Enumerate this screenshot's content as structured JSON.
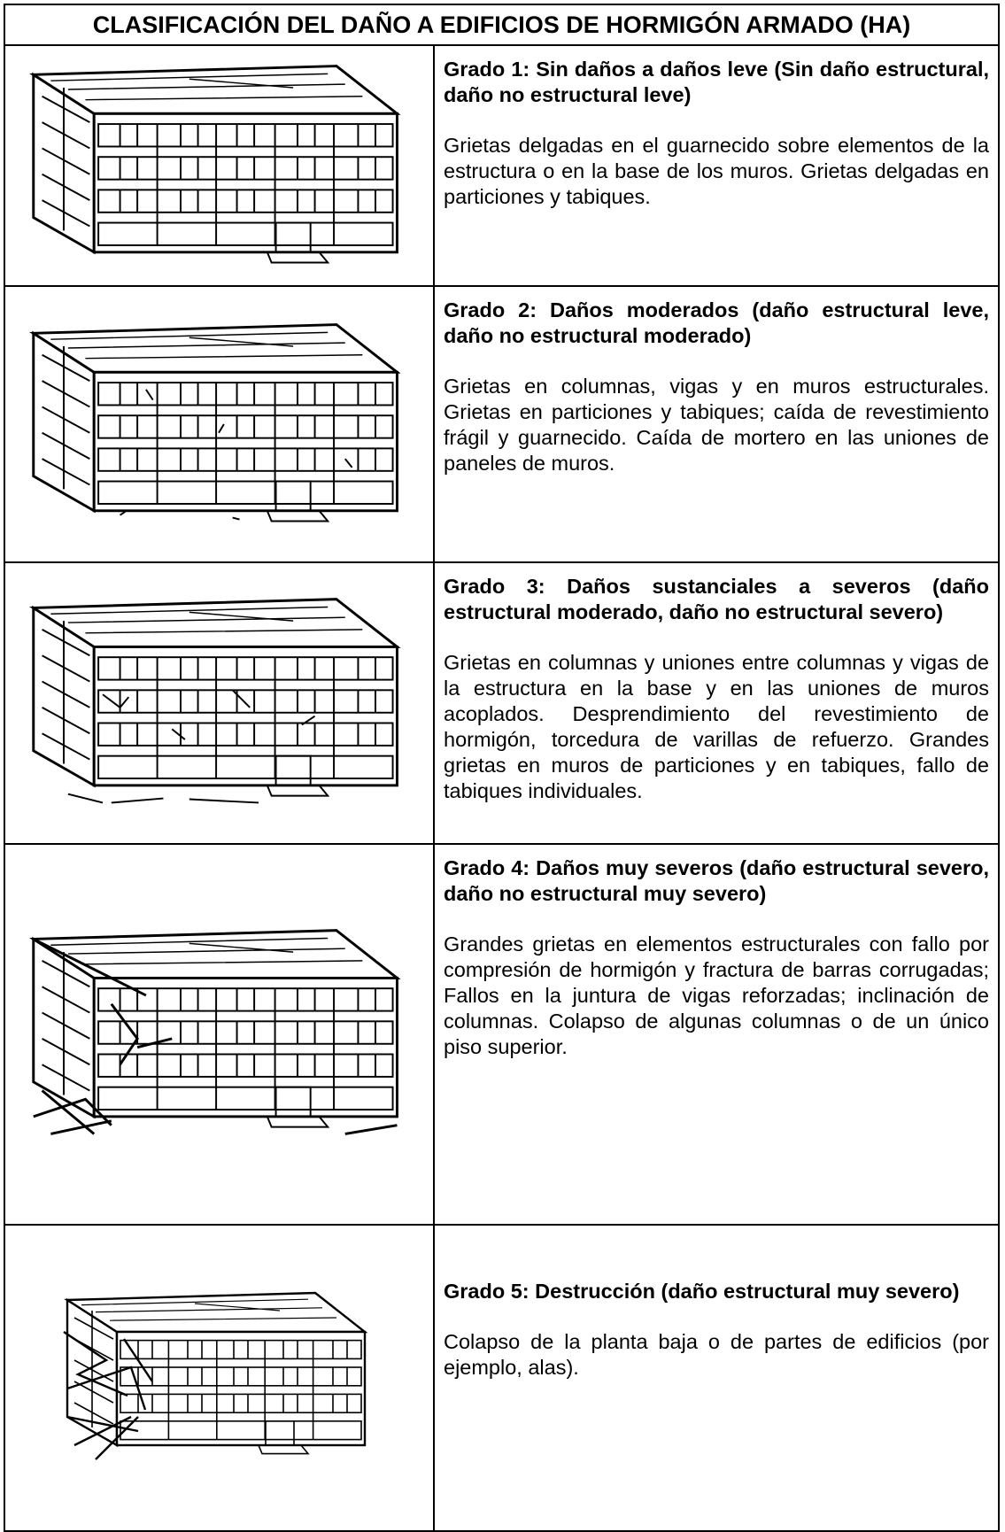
{
  "table": {
    "title": "CLASIFICACIÓN DEL DAÑO A EDIFICIOS DE HORMIGÓN ARMADO (HA)",
    "rows": [
      {
        "heading": "Grado 1: Sin daños a daños leve (Sin daño estructural, daño no estructural leve)",
        "description": "Grietas delgadas en el guarnecido sobre elementos de la estructura o en la base de los muros. Grietas delgadas en particiones y tabiques."
      },
      {
        "heading": "Grado 2: Daños moderados (daño estructural leve, daño no estructural moderado)",
        "description": "Grietas en columnas, vigas y en muros estructurales. Grietas en particiones y tabiques; caída de revestimiento frágil y guarnecido. Caída de mortero en las uniones de paneles de muros."
      },
      {
        "heading": "Grado 3: Daños sustanciales a severos (daño estructural moderado, daño no estructural severo)",
        "description": "Grietas en columnas y uniones entre columnas y vigas de la estructura en la base y en las uniones de muros acoplados. Desprendimiento del revestimiento de hormigón, torcedura de varillas de refuerzo. Grandes grietas en muros de particiones y en tabiques, fallo de tabiques individuales."
      },
      {
        "heading": "Grado 4: Daños muy severos (daño estructural severo, daño no estructural muy severo)",
        "description": "Grandes grietas en elementos estructurales con fallo por compresión de hormigón y fractura de barras corrugadas; Fallos en la juntura de vigas reforzadas; inclinación de columnas. Colapso de algunas columnas o de un único piso superior."
      },
      {
        "heading": "Grado 5: Destrucción (daño estructural muy severo)",
        "description": "Colapso de la planta baja o de partes de edificios (por ejemplo, alas)."
      }
    ]
  }
}
